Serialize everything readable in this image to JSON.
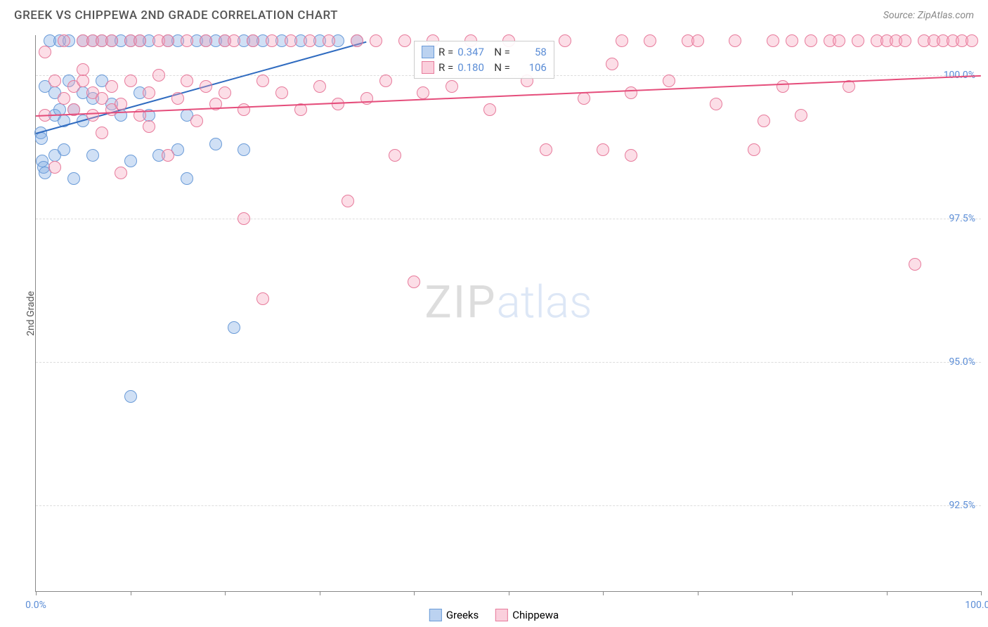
{
  "header": {
    "title": "GREEK VS CHIPPEWA 2ND GRADE CORRELATION CHART",
    "source_prefix": "Source: ",
    "source_name": "ZipAtlas.com"
  },
  "chart": {
    "type": "scatter",
    "ylabel": "2nd Grade",
    "xlim": [
      0,
      100
    ],
    "ylim": [
      91,
      100.7
    ],
    "background_color": "#ffffff",
    "grid_color": "#dddddd",
    "axis_color": "#888888",
    "tick_label_color": "#5b8dd6",
    "yticks": [
      {
        "v": 100.0,
        "label": "100.0%"
      },
      {
        "v": 97.5,
        "label": "97.5%"
      },
      {
        "v": 95.0,
        "label": "95.0%"
      },
      {
        "v": 92.5,
        "label": "92.5%"
      }
    ],
    "xticks_major": [
      0,
      10,
      20,
      30,
      40,
      50,
      60,
      70,
      80,
      90,
      100
    ],
    "xtick_labels": [
      {
        "v": 0,
        "label": "0.0%"
      },
      {
        "v": 100,
        "label": "100.0%"
      }
    ],
    "marker_radius": 9,
    "marker_border_width": 1.5,
    "series": [
      {
        "name": "Greeks",
        "fill": "rgba(120,165,225,0.35)",
        "stroke": "#6a9bd8",
        "trend_color": "#2f6bc0",
        "trend_width": 2,
        "trend": {
          "x1": 0,
          "y1": 99.0,
          "x2": 35,
          "y2": 100.6
        },
        "points": [
          [
            0.5,
            99.0
          ],
          [
            0.6,
            98.9
          ],
          [
            0.7,
            98.5
          ],
          [
            0.8,
            98.4
          ],
          [
            1,
            99.8
          ],
          [
            1,
            98.3
          ],
          [
            1.5,
            100.6
          ],
          [
            2,
            99.7
          ],
          [
            2,
            99.3
          ],
          [
            2,
            98.6
          ],
          [
            2.5,
            100.6
          ],
          [
            2.5,
            99.4
          ],
          [
            3,
            99.2
          ],
          [
            3,
            98.7
          ],
          [
            3.5,
            100.6
          ],
          [
            3.5,
            99.9
          ],
          [
            4,
            99.4
          ],
          [
            4,
            98.2
          ],
          [
            5,
            99.7
          ],
          [
            5,
            100.6
          ],
          [
            5,
            99.2
          ],
          [
            6,
            99.6
          ],
          [
            6,
            98.6
          ],
          [
            6,
            100.6
          ],
          [
            7,
            99.9
          ],
          [
            7,
            100.6
          ],
          [
            8,
            99.5
          ],
          [
            8,
            100.6
          ],
          [
            9,
            99.3
          ],
          [
            9,
            100.6
          ],
          [
            10,
            100.6
          ],
          [
            10,
            98.5
          ],
          [
            10,
            94.4
          ],
          [
            11,
            100.6
          ],
          [
            11,
            99.7
          ],
          [
            12,
            99.3
          ],
          [
            12,
            100.6
          ],
          [
            13,
            98.6
          ],
          [
            14,
            100.6
          ],
          [
            15,
            98.7
          ],
          [
            15,
            100.6
          ],
          [
            16,
            99.3
          ],
          [
            16,
            98.2
          ],
          [
            17,
            100.6
          ],
          [
            18,
            100.6
          ],
          [
            19,
            100.6
          ],
          [
            19,
            98.8
          ],
          [
            20,
            100.6
          ],
          [
            21,
            95.6
          ],
          [
            22,
            100.6
          ],
          [
            22,
            98.7
          ],
          [
            23,
            100.6
          ],
          [
            24,
            100.6
          ],
          [
            26,
            100.6
          ],
          [
            28,
            100.6
          ],
          [
            30,
            100.6
          ],
          [
            32,
            100.6
          ],
          [
            34,
            100.6
          ]
        ]
      },
      {
        "name": "Chippewa",
        "fill": "rgba(245,160,185,0.35)",
        "stroke": "#e77a9b",
        "trend_color": "#e54d7b",
        "trend_width": 2,
        "trend": {
          "x1": 0,
          "y1": 99.3,
          "x2": 100,
          "y2": 100.0
        },
        "points": [
          [
            1,
            99.3
          ],
          [
            1,
            100.4
          ],
          [
            2,
            99.9
          ],
          [
            2,
            98.4
          ],
          [
            3,
            99.6
          ],
          [
            3,
            100.6
          ],
          [
            4,
            99.8
          ],
          [
            4,
            99.4
          ],
          [
            5,
            99.9
          ],
          [
            5,
            100.1
          ],
          [
            5,
            100.6
          ],
          [
            6,
            99.3
          ],
          [
            6,
            99.7
          ],
          [
            6,
            100.6
          ],
          [
            7,
            99.6
          ],
          [
            7,
            99.0
          ],
          [
            7,
            100.6
          ],
          [
            8,
            99.4
          ],
          [
            8,
            99.8
          ],
          [
            8,
            100.6
          ],
          [
            9,
            99.5
          ],
          [
            9,
            98.3
          ],
          [
            10,
            99.9
          ],
          [
            10,
            100.6
          ],
          [
            11,
            99.3
          ],
          [
            11,
            100.6
          ],
          [
            12,
            99.7
          ],
          [
            12,
            99.1
          ],
          [
            13,
            100.0
          ],
          [
            13,
            100.6
          ],
          [
            14,
            98.6
          ],
          [
            14,
            100.6
          ],
          [
            15,
            99.6
          ],
          [
            16,
            99.9
          ],
          [
            16,
            100.6
          ],
          [
            17,
            99.2
          ],
          [
            18,
            99.8
          ],
          [
            18,
            100.6
          ],
          [
            19,
            99.5
          ],
          [
            20,
            99.7
          ],
          [
            20,
            100.6
          ],
          [
            21,
            100.6
          ],
          [
            22,
            97.5
          ],
          [
            22,
            99.4
          ],
          [
            23,
            100.6
          ],
          [
            24,
            96.1
          ],
          [
            24,
            99.9
          ],
          [
            25,
            100.6
          ],
          [
            26,
            99.7
          ],
          [
            27,
            100.6
          ],
          [
            28,
            99.4
          ],
          [
            29,
            100.6
          ],
          [
            30,
            99.8
          ],
          [
            31,
            100.6
          ],
          [
            32,
            99.5
          ],
          [
            33,
            97.8
          ],
          [
            34,
            100.6
          ],
          [
            35,
            99.6
          ],
          [
            36,
            100.6
          ],
          [
            37,
            99.9
          ],
          [
            38,
            98.6
          ],
          [
            39,
            100.6
          ],
          [
            40,
            96.4
          ],
          [
            41,
            99.7
          ],
          [
            42,
            100.6
          ],
          [
            44,
            99.8
          ],
          [
            46,
            100.6
          ],
          [
            48,
            99.4
          ],
          [
            50,
            100.6
          ],
          [
            52,
            99.9
          ],
          [
            54,
            98.7
          ],
          [
            56,
            100.6
          ],
          [
            58,
            99.6
          ],
          [
            60,
            98.7
          ],
          [
            61,
            100.2
          ],
          [
            62,
            100.6
          ],
          [
            63,
            99.7
          ],
          [
            63,
            98.6
          ],
          [
            65,
            100.6
          ],
          [
            67,
            99.9
          ],
          [
            69,
            100.6
          ],
          [
            70,
            100.6
          ],
          [
            72,
            99.5
          ],
          [
            74,
            100.6
          ],
          [
            76,
            98.7
          ],
          [
            77,
            99.2
          ],
          [
            78,
            100.6
          ],
          [
            79,
            99.8
          ],
          [
            80,
            100.6
          ],
          [
            81,
            99.3
          ],
          [
            82,
            100.6
          ],
          [
            84,
            100.6
          ],
          [
            85,
            100.6
          ],
          [
            86,
            99.8
          ],
          [
            87,
            100.6
          ],
          [
            89,
            100.6
          ],
          [
            90,
            100.6
          ],
          [
            91,
            100.6
          ],
          [
            92,
            100.6
          ],
          [
            93,
            96.7
          ],
          [
            94,
            100.6
          ],
          [
            95,
            100.6
          ],
          [
            96,
            100.6
          ],
          [
            97,
            100.6
          ],
          [
            98,
            100.6
          ],
          [
            99,
            100.6
          ]
        ]
      }
    ],
    "stats_box": {
      "left_pct": 40,
      "top_pct": 1,
      "rows": [
        {
          "swatch_fill": "rgba(120,165,225,0.5)",
          "swatch_stroke": "#6a9bd8",
          "r_label": "R =",
          "r": "0.347",
          "n_label": "N =",
          "n": "58"
        },
        {
          "swatch_fill": "rgba(245,160,185,0.5)",
          "swatch_stroke": "#e77a9b",
          "r_label": "R =",
          "r": "0.180",
          "n_label": "N =",
          "n": "106"
        }
      ]
    },
    "watermark": {
      "part1": "ZIP",
      "part2": "atlas"
    },
    "bottom_legend": [
      {
        "swatch_fill": "rgba(120,165,225,0.5)",
        "swatch_stroke": "#6a9bd8",
        "label": "Greeks"
      },
      {
        "swatch_fill": "rgba(245,160,185,0.5)",
        "swatch_stroke": "#e77a9b",
        "label": "Chippewa"
      }
    ]
  }
}
